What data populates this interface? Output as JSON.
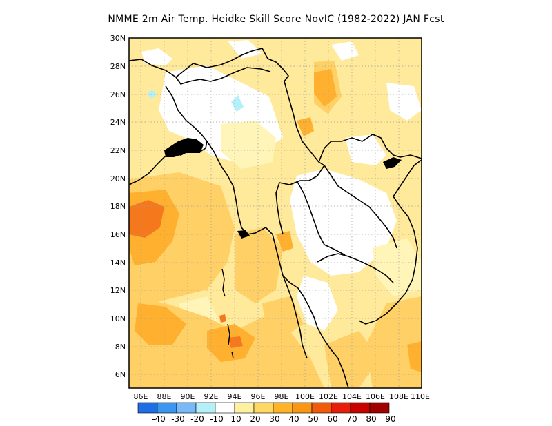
{
  "title": "NMME  2m Air Temp. Heidke Skill Score NovIC (1982-2022) JAN Fcst",
  "map": {
    "lat_labels": [
      "30N",
      "28N",
      "26N",
      "24N",
      "22N",
      "20N",
      "18N",
      "16N",
      "14N",
      "12N",
      "10N",
      "8N",
      "6N"
    ],
    "lon_labels": [
      "86E",
      "88E",
      "90E",
      "92E",
      "94E",
      "96E",
      "98E",
      "100E",
      "102E",
      "104E",
      "106E",
      "108E",
      "110E"
    ],
    "lat_range": [
      5,
      30
    ],
    "lon_range": [
      85,
      110
    ],
    "grid": "dotted"
  },
  "colorbar": {
    "labels": [
      "-40",
      "-30",
      "-20",
      "-10",
      "10",
      "20",
      "30",
      "40",
      "50",
      "60",
      "70",
      "80",
      "90"
    ],
    "colors": [
      "#1e6ee6",
      "#3c96f0",
      "#78b9fa",
      "#b4f0fa",
      "#ffffff",
      "#fff0a0",
      "#ffd763",
      "#ffb428",
      "#fa9614",
      "#f05a0a",
      "#e61e0a",
      "#c80000",
      "#a00000"
    ]
  }
}
